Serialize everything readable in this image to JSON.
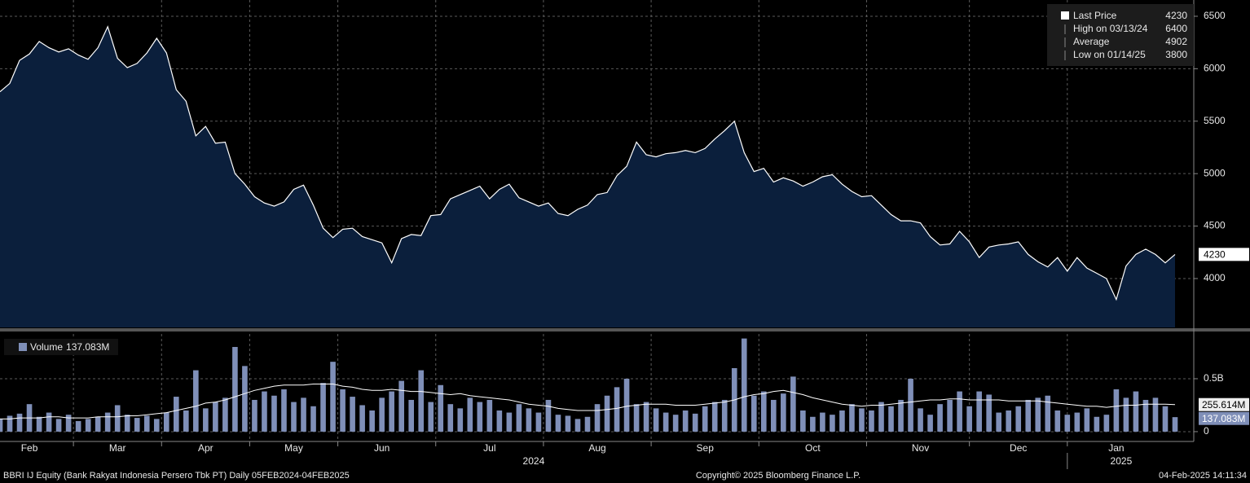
{
  "chart_data": [
    {
      "type": "area",
      "series": [
        {
          "name": "Last Price",
          "color": "#ffffff",
          "fill": "#0b1f3c",
          "values": [
            5780,
            5860,
            6080,
            6140,
            6260,
            6200,
            6160,
            6190,
            6130,
            6090,
            6200,
            6400,
            6100,
            6010,
            6050,
            6150,
            6290,
            6150,
            5800,
            5690,
            5360,
            5450,
            5290,
            5300,
            5000,
            4900,
            4780,
            4720,
            4690,
            4730,
            4850,
            4890,
            4700,
            4480,
            4390,
            4470,
            4480,
            4400,
            4370,
            4340,
            4150,
            4380,
            4420,
            4410,
            4600,
            4610,
            4760,
            4800,
            4840,
            4880,
            4760,
            4850,
            4900,
            4770,
            4730,
            4690,
            4720,
            4620,
            4600,
            4660,
            4700,
            4800,
            4820,
            4980,
            5070,
            5300,
            5180,
            5160,
            5190,
            5200,
            5220,
            5200,
            5240,
            5330,
            5410,
            5500,
            5200,
            5020,
            5050,
            4920,
            4960,
            4930,
            4880,
            4920,
            4970,
            4990,
            4900,
            4830,
            4780,
            4790,
            4700,
            4610,
            4550,
            4550,
            4530,
            4400,
            4320,
            4330,
            4450,
            4350,
            4200,
            4300,
            4320,
            4330,
            4350,
            4230,
            4160,
            4110,
            4200,
            4070,
            4200,
            4100,
            4050,
            4000,
            3800,
            4120,
            4230,
            4280,
            4230,
            4150,
            4230
          ]
        }
      ],
      "stats": [
        {
          "label": "High on 03/13/24",
          "value": 6400
        },
        {
          "label": "Average",
          "value": 4902
        },
        {
          "label": "Low on 01/14/25",
          "value": 3800
        }
      ],
      "ylim": [
        3534,
        6655
      ],
      "yticks": [
        4000,
        4500,
        5000,
        5500,
        6000,
        6500
      ],
      "grid": true
    },
    {
      "type": "bar",
      "categories": [
        null,
        null,
        null,
        "Feb",
        null,
        null,
        null,
        null,
        null,
        null,
        null,
        null,
        "Mar",
        null,
        null,
        null,
        null,
        null,
        null,
        null,
        null,
        "Apr",
        null,
        null,
        null,
        null,
        null,
        null,
        null,
        null,
        "May",
        null,
        null,
        null,
        null,
        null,
        null,
        null,
        null,
        "Jun",
        null,
        null,
        null,
        null,
        null,
        null,
        null,
        null,
        null,
        null,
        "Jul",
        null,
        null,
        null,
        null,
        null,
        null,
        null,
        null,
        null,
        null,
        "Aug",
        null,
        null,
        null,
        null,
        null,
        null,
        null,
        null,
        null,
        null,
        "Sep",
        null,
        null,
        null,
        null,
        null,
        null,
        null,
        null,
        null,
        null,
        "Oct",
        null,
        null,
        null,
        null,
        null,
        null,
        null,
        null,
        null,
        null,
        "Nov",
        null,
        null,
        null,
        null,
        null,
        null,
        null,
        null,
        null,
        "Dec",
        null,
        null,
        null,
        null,
        null,
        null,
        null,
        null,
        null,
        "Jan",
        null,
        null,
        null,
        null,
        null,
        null
      ],
      "years": [
        "2024",
        "2025"
      ],
      "series": [
        {
          "name": "Volume",
          "color": "#7f8fb8",
          "last_value_label": "137.083M",
          "values": [
            0.12,
            0.15,
            0.17,
            0.26,
            0.14,
            0.18,
            0.12,
            0.16,
            0.1,
            0.12,
            0.14,
            0.18,
            0.25,
            0.16,
            0.13,
            0.15,
            0.12,
            0.18,
            0.33,
            0.2,
            0.58,
            0.22,
            0.28,
            0.32,
            0.8,
            0.62,
            0.3,
            0.38,
            0.34,
            0.4,
            0.28,
            0.32,
            0.24,
            0.46,
            0.66,
            0.4,
            0.33,
            0.25,
            0.2,
            0.32,
            0.38,
            0.48,
            0.3,
            0.58,
            0.28,
            0.44,
            0.26,
            0.22,
            0.32,
            0.28,
            0.3,
            0.2,
            0.18,
            0.26,
            0.22,
            0.18,
            0.3,
            0.16,
            0.15,
            0.12,
            0.14,
            0.26,
            0.34,
            0.42,
            0.5,
            0.26,
            0.28,
            0.22,
            0.18,
            0.16,
            0.2,
            0.17,
            0.24,
            0.28,
            0.3,
            0.6,
            0.88,
            0.34,
            0.38,
            0.3,
            0.36,
            0.52,
            0.2,
            0.14,
            0.18,
            0.16,
            0.2,
            0.26,
            0.22,
            0.2,
            0.28,
            0.24,
            0.3,
            0.5,
            0.22,
            0.16,
            0.26,
            0.3,
            0.38,
            0.24,
            0.38,
            0.35,
            0.18,
            0.2,
            0.24,
            0.3,
            0.32,
            0.34,
            0.2,
            0.16,
            0.18,
            0.22,
            0.14,
            0.16,
            0.4,
            0.32,
            0.38,
            0.3,
            0.32,
            0.24,
            0.137083
          ]
        },
        {
          "color": "#ffffff",
          "last_value_label": "255.614M",
          "values": [
            0.12,
            0.12,
            0.13,
            0.13,
            0.13,
            0.14,
            0.14,
            0.13,
            0.13,
            0.13,
            0.14,
            0.14,
            0.14,
            0.15,
            0.15,
            0.16,
            0.17,
            0.18,
            0.2,
            0.22,
            0.24,
            0.27,
            0.28,
            0.3,
            0.33,
            0.36,
            0.39,
            0.41,
            0.43,
            0.44,
            0.44,
            0.44,
            0.45,
            0.45,
            0.45,
            0.43,
            0.42,
            0.4,
            0.39,
            0.39,
            0.4,
            0.39,
            0.38,
            0.38,
            0.37,
            0.36,
            0.35,
            0.36,
            0.34,
            0.33,
            0.32,
            0.31,
            0.3,
            0.28,
            0.26,
            0.25,
            0.24,
            0.22,
            0.21,
            0.2,
            0.2,
            0.2,
            0.21,
            0.22,
            0.24,
            0.25,
            0.26,
            0.26,
            0.26,
            0.25,
            0.25,
            0.25,
            0.26,
            0.27,
            0.28,
            0.3,
            0.33,
            0.35,
            0.36,
            0.38,
            0.39,
            0.37,
            0.35,
            0.32,
            0.3,
            0.28,
            0.26,
            0.25,
            0.24,
            0.25,
            0.25,
            0.26,
            0.27,
            0.28,
            0.29,
            0.3,
            0.3,
            0.31,
            0.31,
            0.3,
            0.3,
            0.3,
            0.3,
            0.29,
            0.29,
            0.29,
            0.29,
            0.28,
            0.27,
            0.26,
            0.25,
            0.24,
            0.24,
            0.23,
            0.24,
            0.25,
            0.25,
            0.26,
            0.26,
            0.26,
            0.255614
          ]
        }
      ],
      "ylim": [
        -0.085,
        0.923
      ],
      "yticks": [
        0,
        {
          "value": 0.5,
          "label": "0.5B"
        }
      ],
      "grid": true
    }
  ],
  "footer": {
    "security": "BBRI IJ Equity (Bank Rakyat Indonesia Persero Tbk PT)  Daily 05FEB2024-04FEB2025",
    "copyright": "Copyright© 2025 Bloomberg Finance L.P.",
    "timestamp": "04-Feb-2025 14:11:34"
  }
}
